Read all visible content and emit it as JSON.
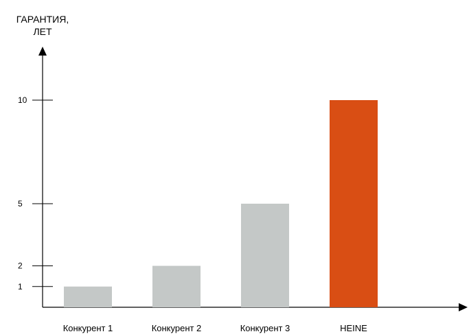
{
  "chart_data": {
    "type": "bar",
    "ylabel_lines": [
      "ГАРАНТИЯ,",
      "ЛЕТ"
    ],
    "xlabel": "",
    "categories": [
      "Конкурент 1",
      "Конкурент 2",
      "Конкурент 3",
      "HEINE"
    ],
    "values": [
      1,
      2,
      5,
      10
    ],
    "yticks": [
      1,
      2,
      5,
      10
    ],
    "ylim": [
      0,
      10
    ],
    "grid": false,
    "legend": "none",
    "colors": {
      "default_bar": "#c4c8c7",
      "highlight_bar": "#d94e14",
      "highlight_label": "#d94e14",
      "axis": "#000000"
    },
    "highlight_category": "HEINE"
  }
}
